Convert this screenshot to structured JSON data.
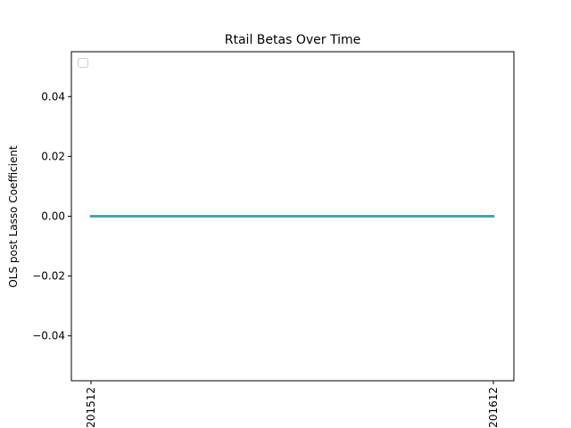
{
  "chart_data": {
    "type": "line",
    "title": "Rtail Betas Over Time",
    "xlabel": "",
    "ylabel": "OLS post Lasso Coefficient",
    "x": [
      "201512",
      "201612"
    ],
    "series": [
      {
        "values": [
          0.0,
          0.0
        ],
        "color": "#4ca3a3"
      }
    ],
    "ylim": [
      -0.055,
      0.055
    ],
    "yticks": [
      -0.04,
      -0.02,
      0.0,
      0.02,
      0.04
    ],
    "ytick_labels": [
      "−0.04",
      "−0.02",
      "0.00",
      "0.02",
      "0.04"
    ],
    "legend": {
      "position": "top-left",
      "entries": []
    },
    "grid": false
  }
}
